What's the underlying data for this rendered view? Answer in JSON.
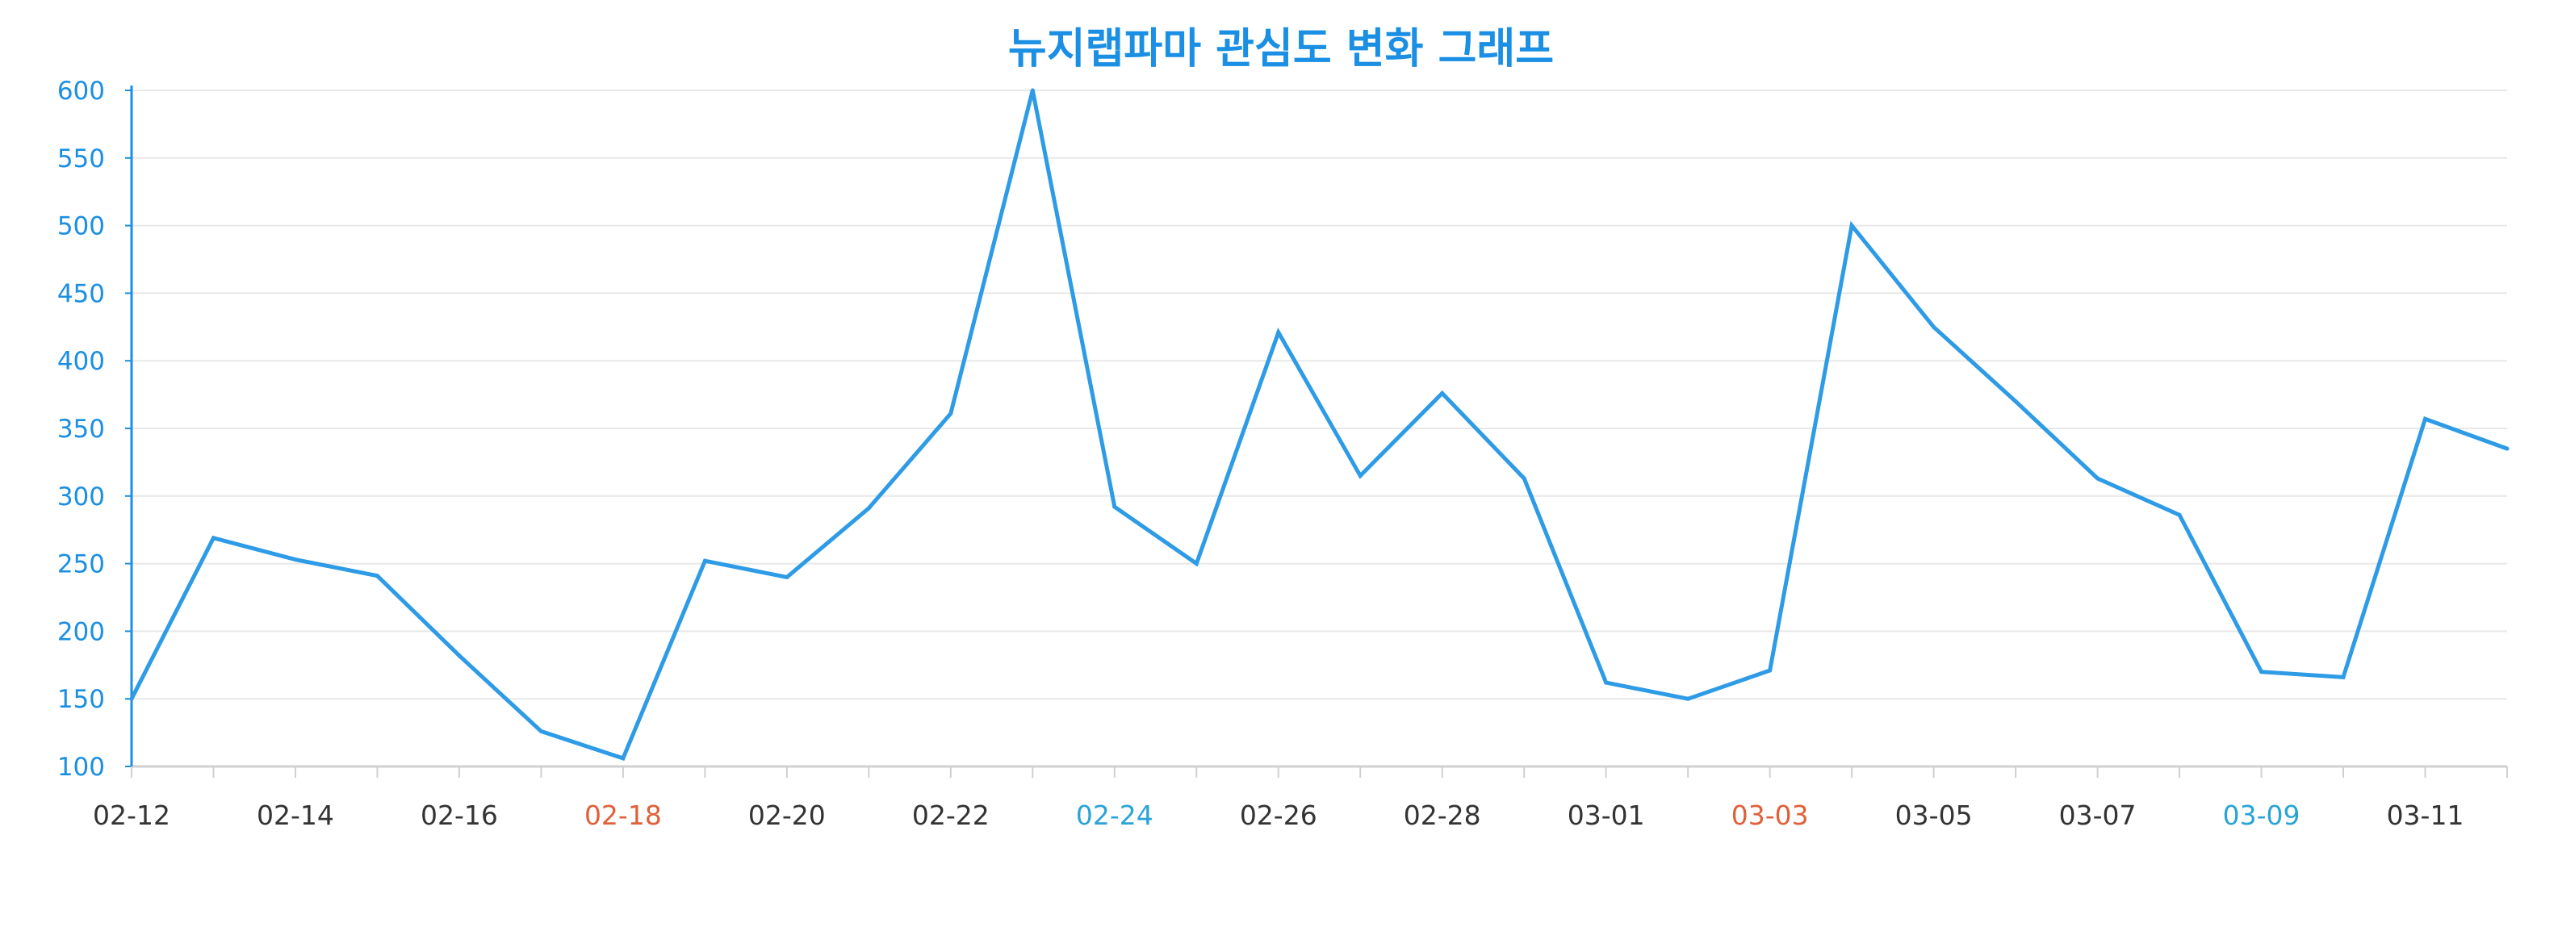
{
  "chart_data": {
    "type": "line",
    "title": "뉴지랩파마 관심도 변화 그래프",
    "xlabel": "",
    "ylabel": "",
    "ylim": [
      100,
      600
    ],
    "yticks": [
      100,
      150,
      200,
      250,
      300,
      350,
      400,
      450,
      500,
      550,
      600
    ],
    "x": [
      "02-12",
      "02-13",
      "02-14",
      "02-15",
      "02-16",
      "02-17",
      "02-18",
      "02-19",
      "02-20",
      "02-21",
      "02-22",
      "02-23",
      "02-24",
      "02-25",
      "02-26",
      "02-27",
      "02-28",
      "02-29",
      "03-01",
      "03-02",
      "03-03",
      "03-04",
      "03-05",
      "03-06",
      "03-07",
      "03-08",
      "03-09",
      "03-10",
      "03-11",
      "03-12"
    ],
    "xtick_labels": [
      {
        "label": "02-12",
        "color": "#333333"
      },
      {
        "label": "02-14",
        "color": "#333333"
      },
      {
        "label": "02-16",
        "color": "#333333"
      },
      {
        "label": "02-18",
        "color": "#e0603a"
      },
      {
        "label": "02-20",
        "color": "#333333"
      },
      {
        "label": "02-22",
        "color": "#333333"
      },
      {
        "label": "02-24",
        "color": "#2aa3d6"
      },
      {
        "label": "02-26",
        "color": "#333333"
      },
      {
        "label": "02-28",
        "color": "#333333"
      },
      {
        "label": "03-01",
        "color": "#333333"
      },
      {
        "label": "03-03",
        "color": "#e0603a"
      },
      {
        "label": "03-05",
        "color": "#333333"
      },
      {
        "label": "03-07",
        "color": "#333333"
      },
      {
        "label": "03-09",
        "color": "#2aa3d6"
      },
      {
        "label": "03-11",
        "color": "#333333"
      }
    ],
    "series": [
      {
        "values": [
          150,
          269,
          253,
          241,
          182,
          126,
          106,
          252,
          240,
          291,
          361,
          600,
          292,
          250,
          421,
          315,
          376,
          313,
          162,
          150,
          171,
          500,
          425,
          370,
          313,
          286,
          170,
          166,
          357,
          335
        ]
      }
    ],
    "grid": true,
    "legend": "none",
    "colors": {
      "line": "#2e9be6",
      "title": "#1a8fe3",
      "y_axis": "#1a8fe3",
      "ytick_text": "#1a8fe3",
      "grid": "#e8e8e8",
      "x_axis": "#d0d0d0"
    }
  }
}
